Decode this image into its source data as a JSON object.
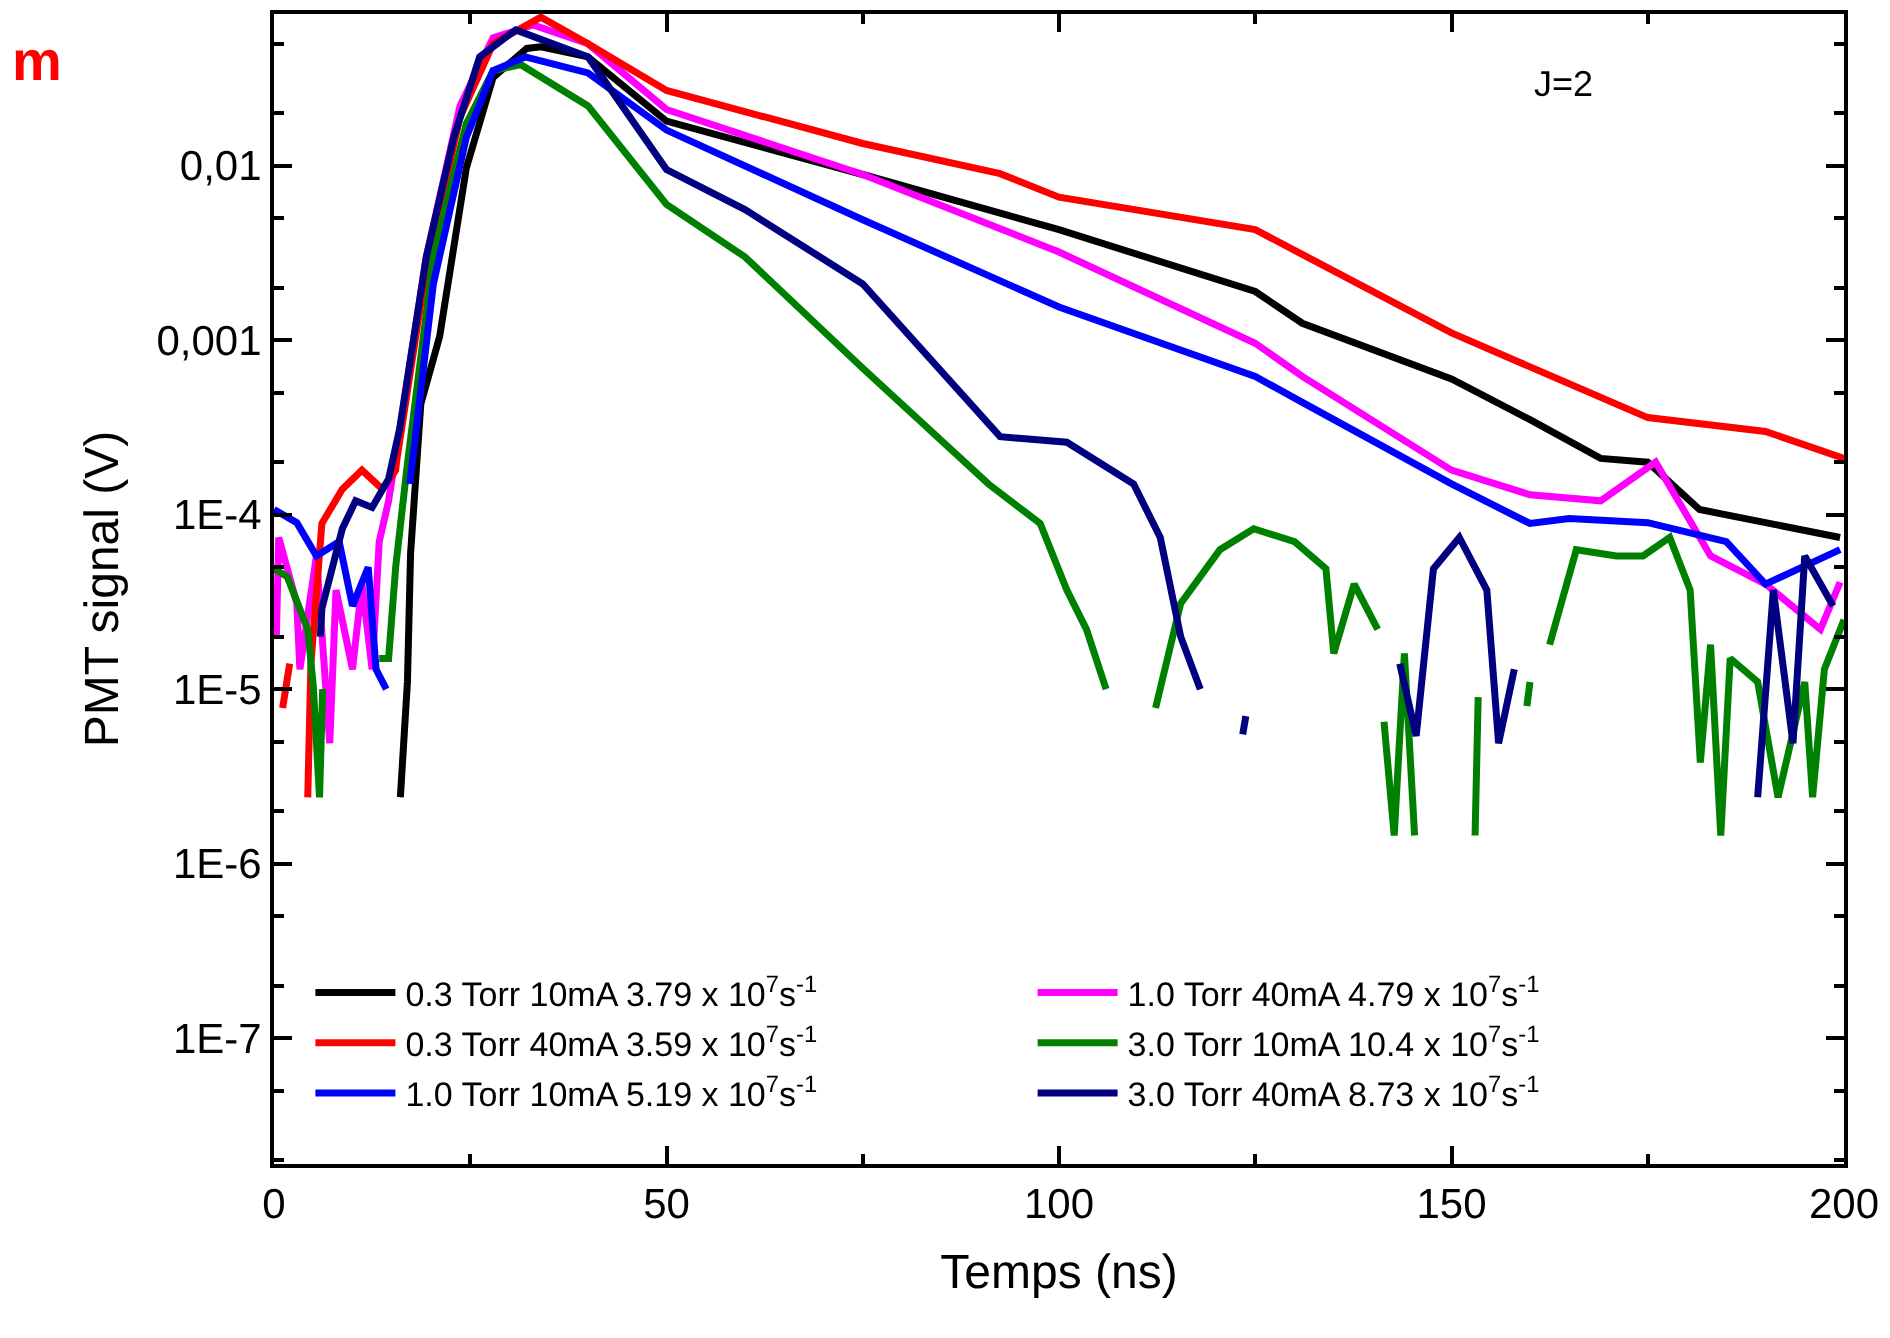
{
  "chart_data": {
    "type": "line",
    "xlabel": "Temps (ns)",
    "ylabel": "PMT signal (V)",
    "annotations": [
      "m",
      "J=2"
    ],
    "log": "y",
    "legend": "bottom",
    "marker": "none",
    "line_style": "solid",
    "xlim": [
      0,
      200
    ],
    "xticks": [
      0,
      50,
      100,
      150,
      200
    ],
    "ylim": [
      1.9e-08,
      0.074
    ],
    "yticks": [
      {
        "value": 1e-07,
        "label": "1E-7"
      },
      {
        "value": 1e-06,
        "label": "1E-6"
      },
      {
        "value": 1e-05,
        "label": "1E-5"
      },
      {
        "value": 0.0001,
        "label": "1E-4"
      },
      {
        "value": 0.001,
        "label": "0,001"
      },
      {
        "value": 0.01,
        "label": "0,01"
      }
    ],
    "series": [
      {
        "name": "0.3 Torr 10mA 3.79 x 10$^{7}$s$^{-1}$",
        "color": "#000000",
        "x": [
          16.1,
          17,
          17.4,
          18.7,
          21.1,
          24.5,
          27.9,
          32.2,
          34,
          40,
          50,
          75,
          100,
          125,
          131,
          150,
          160,
          169,
          175,
          181.6,
          190,
          199.5
        ],
        "values": [
          2.4e-06,
          1.1e-05,
          6e-05,
          0.00043,
          0.00105,
          0.0097,
          0.032,
          0.047,
          0.048,
          0.042,
          0.018,
          0.0089,
          0.0043,
          0.0019,
          0.00125,
          0.0006,
          0.00035,
          0.00021,
          0.0002,
          0.000107,
          9e-05,
          7.4e-05
        ]
      },
      {
        "name": "1.0 Torr 40mA 4.79 x 10$^{7}$s$^{-1}$",
        "color": "#ff00ff",
        "x": [
          0.3,
          0.6,
          2.9,
          3.3,
          5.4,
          7.1,
          7.9,
          10,
          11.2,
          12.5,
          13.4,
          14.6,
          16,
          19.4,
          23.7,
          27.9,
          33,
          40,
          50,
          75,
          100,
          125,
          131,
          150,
          160,
          169,
          176,
          183,
          190,
          197,
          199.5
        ],
        "values": [
          2e-05,
          7.4e-05,
          3.1e-05,
          1.3e-05,
          5.8e-05,
          4.9e-06,
          3.7e-05,
          1.3e-05,
          4e-05,
          1.3e-05,
          7e-05,
          0.00012,
          0.0003,
          0.003,
          0.022,
          0.054,
          0.064,
          0.05,
          0.021,
          0.0089,
          0.0032,
          0.00096,
          0.00062,
          0.00018,
          0.00013,
          0.00012,
          0.0002,
          5.8e-05,
          4e-05,
          2.2e-05,
          4.1e-05
        ]
      },
      {
        "name": "0.3 Torr 40mA 3.59 x 10$^{7}$s$^{-1}$",
        "color": "#ff0000",
        "x": [
          1.1,
          2,
          2.1,
          4.3,
          4.7,
          6.1,
          8.7,
          11.2,
          13.8,
          15.5,
          15.6,
          19.4,
          23.7,
          27.9,
          34,
          40,
          50,
          75,
          92.5,
          100,
          125,
          150,
          175,
          190,
          200
        ],
        "values": [
          7.8e-06,
          1.4e-05,
          null,
          2.4e-06,
          1.4e-05,
          8.9e-05,
          0.00014,
          0.00018,
          0.00014,
          0.00018,
          0.0002,
          0.0026,
          0.019,
          0.05,
          0.071,
          0.05,
          0.027,
          0.0134,
          0.009,
          0.0066,
          0.0043,
          0.0011,
          0.00036,
          0.0003,
          0.00021
        ]
      },
      {
        "name": "3.0 Torr 10mA 10.4 x 10$^{7}$s$^{-1}$",
        "color": "#008000",
        "x": [
          0,
          1.7,
          4.3,
          5,
          5.8,
          6.2,
          6.5,
          13.4,
          14.6,
          15.5,
          16.9,
          20.3,
          24.5,
          27.9,
          31.4,
          40,
          50,
          60,
          75,
          91,
          97.6,
          101,
          103.5,
          106,
          109,
          112.3,
          115.5,
          120.5,
          124.8,
          130,
          134,
          135,
          137.6,
          140.6,
          141,
          141.4,
          142.7,
          144,
          145.3,
          149,
          153,
          153.4,
          156,
          159.6,
          160,
          161,
          162.5,
          165.9,
          171,
          174.4,
          177.8,
          180.4,
          181.7,
          183,
          184.3,
          185.5,
          189,
          191.6,
          195,
          196,
          197.5,
          200
        ],
        "values": [
          4.9e-05,
          4.4e-05,
          2.2e-05,
          1.05e-05,
          2.4e-06,
          1e-05,
          null,
          1.5e-05,
          1.5e-05,
          5e-05,
          0.00018,
          0.003,
          0.0174,
          0.035,
          0.038,
          0.022,
          0.006,
          0.003,
          0.00069,
          0.00015,
          8.9e-05,
          3.7e-05,
          2.2e-05,
          1e-05,
          null,
          7.8e-06,
          3.1e-05,
          6.3e-05,
          8.3e-05,
          7e-05,
          4.9e-05,
          1.6e-05,
          4e-05,
          2.2e-05,
          null,
          6.5e-06,
          1.45e-06,
          1.6e-05,
          1.45e-06,
          null,
          1.45e-06,
          9e-06,
          null,
          8e-06,
          1.1e-05,
          null,
          1.8e-05,
          6.3e-05,
          5.8e-05,
          5.8e-05,
          7.4e-05,
          3.7e-05,
          3.8e-06,
          1.8e-05,
          1.45e-06,
          1.5e-05,
          1.1e-05,
          2.4e-06,
          1.1e-05,
          2.4e-06,
          1.3e-05,
          2.5e-05
        ]
      },
      {
        "name": "1.0 Torr 10mA 5.19 x 10$^{7}$s$^{-1}$",
        "color": "#0000ff",
        "x": [
          0,
          2.9,
          5.4,
          8.3,
          10,
          12,
          13,
          14.3,
          14.5,
          17.3,
          20.3,
          24.5,
          27.9,
          32,
          40,
          50,
          75,
          100,
          125,
          131,
          150,
          160,
          165,
          175,
          185,
          190,
          199.5
        ],
        "values": [
          0.000107,
          9e-05,
          5.8e-05,
          7e-05,
          3e-05,
          5e-05,
          1.3e-05,
          1e-05,
          null,
          0.00015,
          0.0021,
          0.0145,
          0.035,
          0.042,
          0.034,
          0.016,
          0.0049,
          0.00155,
          0.00062,
          0.00044,
          0.00015,
          8.9e-05,
          9.5e-05,
          9e-05,
          7e-05,
          4e-05,
          6.3e-05
        ]
      },
      {
        "name": "3.0 Torr 40mA 8.73 x 10$^{7}$s$^{-1}$",
        "color": "#000080",
        "x": [
          5.9,
          6.1,
          8.7,
          10.4,
          12.5,
          14.6,
          16,
          19.4,
          22.9,
          26.2,
          30.8,
          40,
          50,
          60,
          75,
          92.5,
          101,
          109.5,
          112.9,
          115.5,
          118,
          120,
          123.4,
          123.8,
          130,
          143.4,
          145.5,
          147.7,
          151,
          154.5,
          156,
          158,
          170,
          189,
          191,
          193.5,
          195,
          198.6
        ],
        "values": [
          2e-05,
          2.9e-05,
          8.3e-05,
          0.00012,
          0.00011,
          0.00016,
          0.00031,
          0.003,
          0.0145,
          0.042,
          0.06,
          0.042,
          0.0095,
          0.0056,
          0.0021,
          0.00028,
          0.00026,
          0.00015,
          7.4e-05,
          2e-05,
          1e-05,
          null,
          5.5e-06,
          7e-06,
          null,
          1.4e-05,
          5.4e-06,
          4.9e-05,
          7.4e-05,
          3.7e-05,
          4.9e-06,
          1.3e-05,
          null,
          2.4e-06,
          3.7e-05,
          4.9e-06,
          5.8e-05,
          3e-05
        ]
      }
    ]
  }
}
